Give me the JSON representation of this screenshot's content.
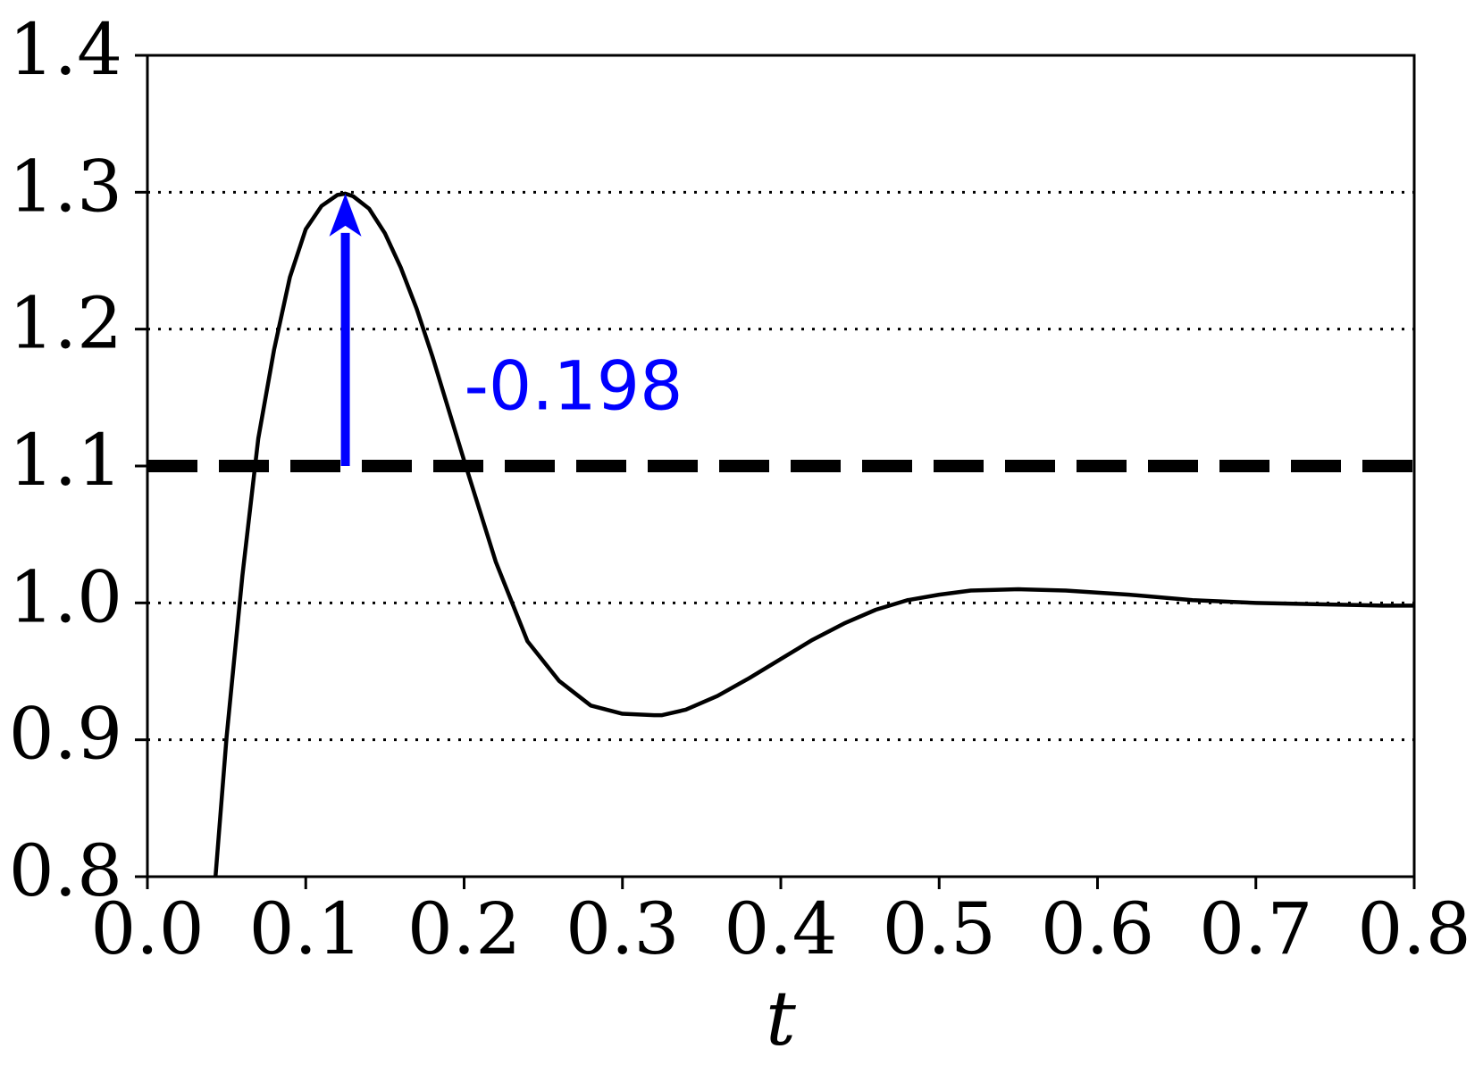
{
  "chart_data": {
    "type": "line",
    "title": "",
    "xlabel": "t",
    "ylabel": "",
    "xlim": [
      0.0,
      0.8
    ],
    "ylim": [
      0.8,
      1.4
    ],
    "x_ticks": [
      0.0,
      0.1,
      0.2,
      0.3,
      0.4,
      0.5,
      0.6,
      0.7,
      0.8
    ],
    "x_tick_labels": [
      "0.0",
      "0.1",
      "0.2",
      "0.3",
      "0.4",
      "0.5",
      "0.6",
      "0.7",
      "0.8"
    ],
    "y_ticks": [
      0.8,
      0.9,
      1.0,
      1.1,
      1.2,
      1.3,
      1.4
    ],
    "y_tick_labels": [
      "0.8",
      "0.9",
      "1.0",
      "1.1",
      "1.2",
      "1.3",
      "1.4"
    ],
    "grid": {
      "axis": "y",
      "style": "dotted",
      "values": [
        0.8,
        0.9,
        1.0,
        1.2,
        1.3
      ]
    },
    "legend": "none",
    "series": [
      {
        "style": "solid",
        "color": "#000000",
        "x": [
          0.043,
          0.05,
          0.06,
          0.07,
          0.08,
          0.09,
          0.1,
          0.11,
          0.12,
          0.125,
          0.13,
          0.14,
          0.15,
          0.16,
          0.17,
          0.18,
          0.19,
          0.2,
          0.22,
          0.24,
          0.26,
          0.28,
          0.3,
          0.32,
          0.325,
          0.34,
          0.36,
          0.38,
          0.4,
          0.42,
          0.44,
          0.46,
          0.48,
          0.5,
          0.52,
          0.55,
          0.58,
          0.62,
          0.66,
          0.7,
          0.74,
          0.78,
          0.8
        ],
        "y": [
          0.8,
          0.902,
          1.02,
          1.12,
          1.185,
          1.238,
          1.273,
          1.29,
          1.298,
          1.299,
          1.297,
          1.288,
          1.27,
          1.245,
          1.215,
          1.18,
          1.142,
          1.104,
          1.03,
          0.972,
          0.943,
          0.925,
          0.919,
          0.918,
          0.918,
          0.922,
          0.932,
          0.945,
          0.959,
          0.973,
          0.985,
          0.995,
          1.002,
          1.006,
          1.009,
          1.01,
          1.009,
          1.006,
          1.002,
          1.0,
          0.999,
          0.998,
          0.998
        ]
      }
    ],
    "reference_line": {
      "y": 1.1,
      "style": "dashed",
      "color": "#000000"
    },
    "annotation": {
      "text": "-0.198",
      "color": "#0000ff",
      "arrow": {
        "x": 0.125,
        "from_y": 1.1,
        "to_y": 1.299
      },
      "text_position": {
        "x": 0.2,
        "y": 1.155
      }
    }
  }
}
